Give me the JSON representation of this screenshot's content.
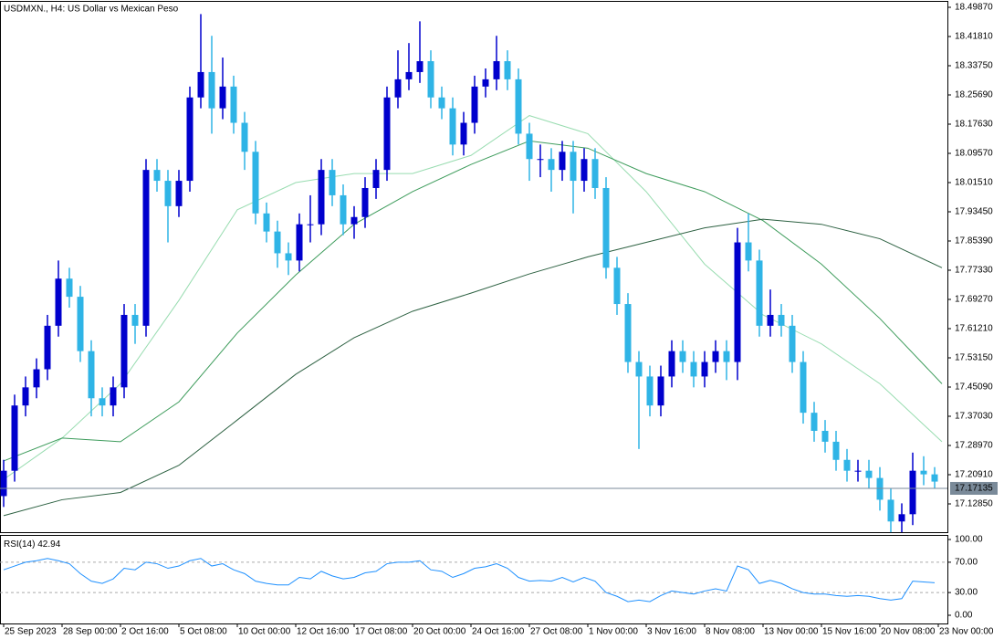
{
  "chart_data": [
    {
      "type": "candlestick",
      "title": "USDMXN., H4:  US Dollar vs Mexican Peso",
      "x": [
        0,
        3,
        6,
        9,
        12,
        15,
        18,
        21,
        24,
        27,
        30,
        33,
        36,
        39,
        42,
        45,
        48,
        51,
        54,
        57,
        60,
        63,
        66,
        69,
        72,
        75,
        78,
        81,
        84,
        87,
        90,
        93,
        96,
        99,
        102,
        105,
        108,
        111,
        114,
        117,
        120,
        123,
        126,
        129,
        132,
        135,
        138,
        141,
        144,
        147,
        150,
        153,
        156,
        159,
        162,
        165,
        168,
        171,
        174,
        177,
        180,
        183,
        186,
        189,
        192,
        195,
        198,
        201,
        204,
        207,
        210,
        213,
        216,
        219,
        222,
        225,
        228,
        231,
        234,
        237,
        240,
        243,
        246,
        249,
        252,
        255
      ],
      "open": [
        17.15,
        17.22,
        17.4,
        17.45,
        17.5,
        17.62,
        17.75,
        17.7,
        17.55,
        17.42,
        17.4,
        17.45,
        17.65,
        17.62,
        18.05,
        18.02,
        17.95,
        18.02,
        18.25,
        18.32,
        18.22,
        18.28,
        18.18,
        18.1,
        17.93,
        17.88,
        17.82,
        17.8,
        17.9,
        17.9,
        18.05,
        17.98,
        17.9,
        17.92,
        18.0,
        18.05,
        18.25,
        18.3,
        18.32,
        18.35,
        18.25,
        18.22,
        18.12,
        18.18,
        18.28,
        18.3,
        18.35,
        18.3,
        18.15,
        18.08,
        18.08,
        18.05,
        18.1,
        18.02,
        18.08,
        18.0,
        17.78,
        17.68,
        17.52,
        17.48,
        17.4,
        17.48,
        17.55,
        17.52,
        17.48,
        17.52,
        17.55,
        17.52,
        17.85,
        17.8,
        17.62,
        17.65,
        17.62,
        17.52,
        17.38,
        17.33,
        17.3,
        17.25,
        17.22,
        17.22,
        17.2,
        17.14,
        17.08,
        17.1,
        17.22,
        17.21
      ],
      "high": [
        17.25,
        17.43,
        17.48,
        17.53,
        17.65,
        17.8,
        17.78,
        17.73,
        17.58,
        17.45,
        17.48,
        17.68,
        17.68,
        18.08,
        18.08,
        18.05,
        18.05,
        18.28,
        18.48,
        18.42,
        18.36,
        18.31,
        18.21,
        18.13,
        17.96,
        17.91,
        17.85,
        17.93,
        17.98,
        18.08,
        18.08,
        18.01,
        17.95,
        18.03,
        18.08,
        18.28,
        18.38,
        18.4,
        18.46,
        18.38,
        18.28,
        18.25,
        18.21,
        18.31,
        18.33,
        18.42,
        18.38,
        18.33,
        18.18,
        18.12,
        18.11,
        18.13,
        18.13,
        18.11,
        18.11,
        18.03,
        17.81,
        17.71,
        17.55,
        17.51,
        17.51,
        17.58,
        17.58,
        17.55,
        17.55,
        17.58,
        17.58,
        17.89,
        17.93,
        17.83,
        17.72,
        17.68,
        17.65,
        17.55,
        17.41,
        17.36,
        17.33,
        17.28,
        17.25,
        17.25,
        17.23,
        17.17,
        17.13,
        17.27,
        17.26,
        17.23
      ],
      "low": [
        17.12,
        17.19,
        17.37,
        17.42,
        17.47,
        17.59,
        17.67,
        17.52,
        17.37,
        17.37,
        17.37,
        17.42,
        17.57,
        17.59,
        17.99,
        17.85,
        17.92,
        17.99,
        18.22,
        18.15,
        18.19,
        18.15,
        18.05,
        17.9,
        17.85,
        17.78,
        17.76,
        17.77,
        17.85,
        17.87,
        17.95,
        17.87,
        17.86,
        17.89,
        17.97,
        18.02,
        18.22,
        18.27,
        18.29,
        18.22,
        18.19,
        18.09,
        18.09,
        18.15,
        18.25,
        18.27,
        18.27,
        18.12,
        18.02,
        18.03,
        17.99,
        18.02,
        17.93,
        17.99,
        17.97,
        17.75,
        17.65,
        17.49,
        17.28,
        17.37,
        17.37,
        17.45,
        17.49,
        17.45,
        17.45,
        17.49,
        17.47,
        17.47,
        17.77,
        17.59,
        17.59,
        17.59,
        17.49,
        17.35,
        17.3,
        17.27,
        17.22,
        17.19,
        17.19,
        17.17,
        17.11,
        17.05,
        17.05,
        17.07,
        17.18,
        17.17
      ],
      "close": [
        17.22,
        17.4,
        17.45,
        17.5,
        17.62,
        17.75,
        17.7,
        17.55,
        17.42,
        17.4,
        17.45,
        17.65,
        17.62,
        18.05,
        18.02,
        17.95,
        18.02,
        18.25,
        18.32,
        18.22,
        18.28,
        18.18,
        18.1,
        17.93,
        17.88,
        17.82,
        17.8,
        17.9,
        17.9,
        18.05,
        17.98,
        17.9,
        17.92,
        18.0,
        18.05,
        18.25,
        18.3,
        18.32,
        18.35,
        18.25,
        18.22,
        18.12,
        18.18,
        18.28,
        18.3,
        18.35,
        18.3,
        18.15,
        18.08,
        18.08,
        18.05,
        18.1,
        18.02,
        18.08,
        18.0,
        17.78,
        17.68,
        17.52,
        17.48,
        17.4,
        17.48,
        17.55,
        17.52,
        17.48,
        17.52,
        17.55,
        17.52,
        17.85,
        17.8,
        17.62,
        17.65,
        17.62,
        17.52,
        17.38,
        17.33,
        17.3,
        17.25,
        17.22,
        17.22,
        17.2,
        17.14,
        17.08,
        17.1,
        17.22,
        17.21,
        17.19
      ],
      "up_color": "#0000cd",
      "down_color": "#2fb4e6",
      "overlays": [
        {
          "color": "#98dcb0",
          "x": [
            0,
            16,
            32,
            48,
            64,
            80,
            96,
            112,
            128,
            144,
            160,
            176,
            192,
            208,
            224,
            240,
            257
          ],
          "values": [
            17.196,
            17.31,
            17.46,
            17.69,
            17.94,
            18.015,
            18.04,
            18.04,
            18.09,
            18.2,
            18.15,
            17.99,
            17.79,
            17.65,
            17.57,
            17.46,
            17.3
          ]
        },
        {
          "color": "#3e9c5c",
          "x": [
            0,
            16,
            32,
            48,
            64,
            80,
            96,
            112,
            128,
            144,
            160,
            176,
            192,
            208,
            224,
            240,
            257
          ],
          "values": [
            17.247,
            17.31,
            17.3,
            17.41,
            17.6,
            17.76,
            17.9,
            17.99,
            18.065,
            18.13,
            18.11,
            18.04,
            17.99,
            17.91,
            17.79,
            17.64,
            17.46
          ]
        },
        {
          "color": "#2d6142",
          "x": [
            0,
            16,
            32,
            48,
            64,
            80,
            96,
            112,
            128,
            144,
            160,
            176,
            192,
            208,
            224,
            240,
            257
          ],
          "values": [
            17.096,
            17.14,
            17.16,
            17.235,
            17.36,
            17.486,
            17.587,
            17.66,
            17.71,
            17.763,
            17.81,
            17.85,
            17.89,
            17.914,
            17.9,
            17.86,
            17.78
          ]
        }
      ],
      "xlim": [
        -1,
        258.5
      ],
      "xticks": [
        {
          "value": 0,
          "label": "25 Sep 2023"
        },
        {
          "value": 16,
          "label": "28 Sep 00:00"
        },
        {
          "value": 32,
          "label": "2 Oct 16:00"
        },
        {
          "value": 48,
          "label": "5 Oct 08:00"
        },
        {
          "value": 64,
          "label": "10 Oct 00:00"
        },
        {
          "value": 80,
          "label": "12 Oct 16:00"
        },
        {
          "value": 96,
          "label": "17 Oct 08:00"
        },
        {
          "value": 112,
          "label": "20 Oct 00:00"
        },
        {
          "value": 128,
          "label": "24 Oct 16:00"
        },
        {
          "value": 144,
          "label": "27 Oct 08:00"
        },
        {
          "value": 160,
          "label": "1 Nov 00:00"
        },
        {
          "value": 176,
          "label": "3 Nov 16:00"
        },
        {
          "value": 192,
          "label": "8 Nov 08:00"
        },
        {
          "value": 208,
          "label": "13 Nov 00:00"
        },
        {
          "value": 224,
          "label": "15 Nov 16:00"
        },
        {
          "value": 240,
          "label": "20 Nov 08:00"
        },
        {
          "value": 256,
          "label": "23 Nov 00:00"
        }
      ],
      "ylim": [
        17.0504,
        18.5138
      ],
      "yticks": [
        {
          "value": 18.4987,
          "label": "18.49870"
        },
        {
          "value": 18.4181,
          "label": "18.41810"
        },
        {
          "value": 18.3375,
          "label": "18.33750"
        },
        {
          "value": 18.2569,
          "label": "18.25690"
        },
        {
          "value": 18.1763,
          "label": "18.17630"
        },
        {
          "value": 18.0957,
          "label": "18.09570"
        },
        {
          "value": 18.0151,
          "label": "18.01510"
        },
        {
          "value": 17.9345,
          "label": "17.93450"
        },
        {
          "value": 17.8539,
          "label": "17.85390"
        },
        {
          "value": 17.7733,
          "label": "17.77330"
        },
        {
          "value": 17.6927,
          "label": "17.69270"
        },
        {
          "value": 17.6121,
          "label": "17.61210"
        },
        {
          "value": 17.5315,
          "label": "17.53150"
        },
        {
          "value": 17.4509,
          "label": "17.45090"
        },
        {
          "value": 17.3703,
          "label": "17.37030"
        },
        {
          "value": 17.2897,
          "label": "17.28970"
        },
        {
          "value": 17.2091,
          "label": "17.20910"
        },
        {
          "value": 17.1285,
          "label": "17.12850"
        }
      ],
      "last_price": {
        "value": 17.17135,
        "label": "17.17135"
      },
      "last_price_color": "#7a8a99"
    },
    {
      "type": "line",
      "label": "RSI(14)",
      "color": "#1e90ff",
      "x": [
        0,
        3,
        6,
        9,
        12,
        15,
        18,
        21,
        24,
        27,
        30,
        33,
        36,
        39,
        42,
        45,
        48,
        51,
        54,
        57,
        60,
        63,
        66,
        69,
        72,
        75,
        78,
        81,
        84,
        87,
        90,
        93,
        96,
        99,
        102,
        105,
        108,
        111,
        114,
        117,
        120,
        123,
        126,
        129,
        132,
        135,
        138,
        141,
        144,
        147,
        150,
        153,
        156,
        159,
        162,
        165,
        168,
        171,
        174,
        177,
        180,
        183,
        186,
        189,
        192,
        195,
        198,
        201,
        204,
        207,
        210,
        213,
        216,
        219,
        222,
        225,
        228,
        231,
        234,
        237,
        240,
        243,
        246,
        249,
        252,
        255
      ],
      "values": [
        60,
        65,
        70,
        72,
        75,
        72,
        68,
        55,
        45,
        42,
        48,
        62,
        60,
        70,
        68,
        62,
        65,
        72,
        75,
        65,
        68,
        60,
        55,
        45,
        42,
        40,
        40,
        50,
        48,
        58,
        52,
        48,
        50,
        56,
        58,
        68,
        70,
        70,
        72,
        60,
        58,
        50,
        55,
        62,
        64,
        68,
        62,
        50,
        45,
        46,
        45,
        50,
        44,
        50,
        45,
        30,
        25,
        18,
        20,
        18,
        26,
        32,
        30,
        28,
        32,
        35,
        32,
        65,
        60,
        42,
        46,
        42,
        35,
        30,
        28,
        28,
        26,
        25,
        26,
        25,
        22,
        20,
        22,
        45,
        44,
        42.94
      ],
      "xlim": [
        -1,
        258.5
      ],
      "ylim": [
        -10.84,
        106.02
      ],
      "yticks": [
        {
          "value": 100,
          "label": "100.00"
        },
        {
          "value": 70,
          "label": "70.00"
        },
        {
          "value": 30,
          "label": "30.00"
        },
        {
          "value": 0,
          "label": "0.00"
        }
      ],
      "levels": [
        70,
        30
      ]
    }
  ]
}
